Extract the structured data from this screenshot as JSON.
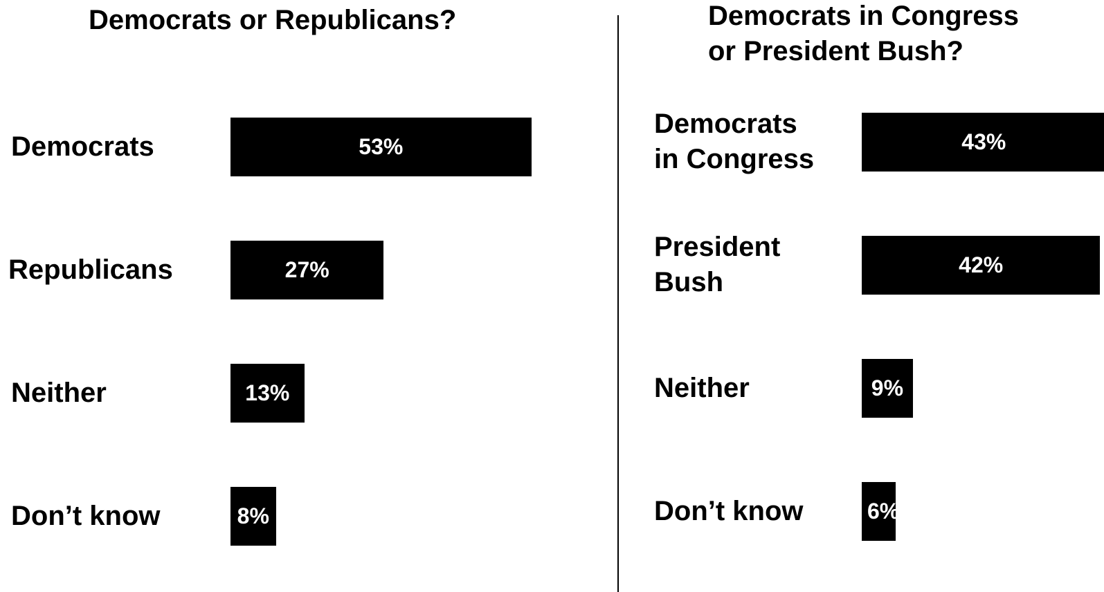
{
  "chart_data": [
    {
      "type": "bar",
      "orientation": "horizontal",
      "title": "Democrats or Republicans?",
      "categories": [
        "Democrats",
        "Republicans",
        "Neither",
        "Don’t know"
      ],
      "values": [
        53,
        27,
        13,
        8
      ],
      "value_labels": [
        "53%",
        "27%",
        "13%",
        "8%"
      ],
      "unit": "%",
      "grid": false,
      "legend": "none",
      "bar_color": "#000000",
      "label_color": "#ffffff"
    },
    {
      "type": "bar",
      "orientation": "horizontal",
      "title": "Democrats in Congress\nor President Bush?",
      "categories": [
        "Democrats\nin Congress",
        "President\nBush",
        "Neither",
        "Don’t know"
      ],
      "values": [
        43,
        42,
        9,
        6
      ],
      "value_labels": [
        "43%",
        "42%",
        "9%",
        "6%"
      ],
      "unit": "%",
      "grid": false,
      "legend": "none",
      "bar_color": "#000000",
      "label_color": "#ffffff"
    }
  ]
}
